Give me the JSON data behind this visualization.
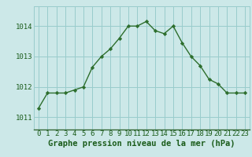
{
  "x": [
    0,
    1,
    2,
    3,
    4,
    5,
    6,
    7,
    8,
    9,
    10,
    11,
    12,
    13,
    14,
    15,
    16,
    17,
    18,
    19,
    20,
    21,
    22,
    23
  ],
  "y": [
    1011.3,
    1011.8,
    1011.8,
    1011.8,
    1011.9,
    1012.0,
    1012.65,
    1013.0,
    1013.25,
    1013.6,
    1014.0,
    1014.0,
    1014.15,
    1013.85,
    1013.75,
    1014.0,
    1013.45,
    1013.0,
    1012.7,
    1012.25,
    1012.1,
    1011.8,
    1011.8,
    1011.8
  ],
  "line_color": "#2d6e2d",
  "marker": "D",
  "marker_size": 2.2,
  "bg_color": "#cce8e8",
  "grid_color": "#99cccc",
  "xlabel": "Graphe pression niveau de la mer (hPa)",
  "xlabel_color": "#1a5c1a",
  "xlabel_fontsize": 7.5,
  "tick_color": "#1a5c1a",
  "tick_fontsize": 6.5,
  "yticks": [
    1011,
    1012,
    1013,
    1014
  ],
  "ylim": [
    1010.6,
    1014.65
  ],
  "xlim": [
    -0.5,
    23.5
  ]
}
